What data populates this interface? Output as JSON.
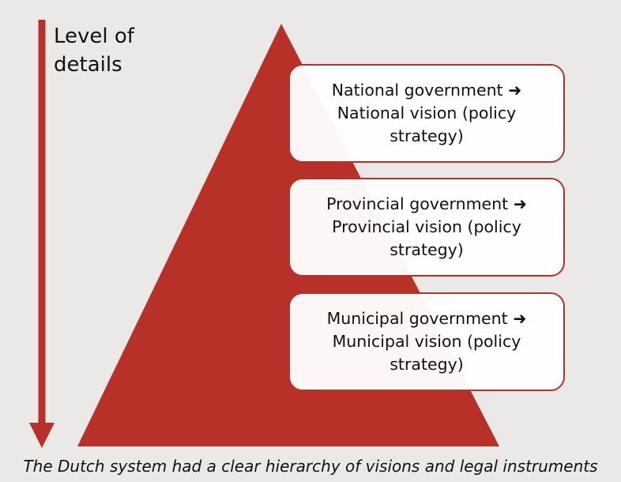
{
  "diagram": {
    "axis_label": "Level of\ndetails",
    "levels": [
      {
        "label": "National government  ➜\nNational vision (policy\nstrategy)"
      },
      {
        "label": "Provincial government ➜\nProvincial vision (policy\nstrategy)"
      },
      {
        "label": "Municipal government ➜\nMunicipal vision (policy\nstrategy)"
      }
    ],
    "caption": "The Dutch system had a clear hierarchy of visions and legal instruments",
    "colors": {
      "background": "#ebe8e8",
      "accent": "#b73128",
      "box_fill": "#ffffff",
      "text": "#111111"
    }
  }
}
